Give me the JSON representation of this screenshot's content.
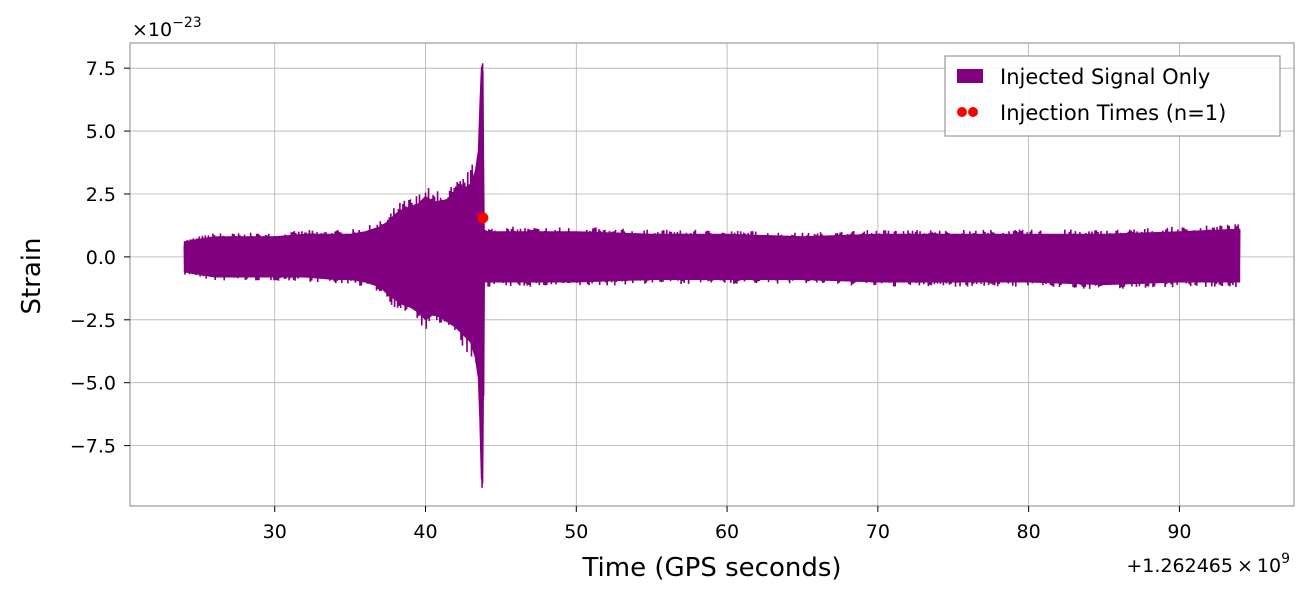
{
  "chart_data": {
    "type": "line",
    "title": "",
    "xlabel": "Time (GPS seconds)",
    "ylabel": "Strain",
    "xlim": [
      20.4,
      97.6
    ],
    "ylim": [
      -9.9,
      8.5
    ],
    "x_offset_label": {
      "base": "+1.262465",
      "times": "×",
      "mantissa": "10",
      "exponent": "9"
    },
    "y_scale_label": {
      "mantissa": "×10",
      "exponent": "−23"
    },
    "xticks": [
      30,
      40,
      50,
      60,
      70,
      80,
      90
    ],
    "xtick_labels": [
      "30",
      "40",
      "50",
      "60",
      "70",
      "80",
      "90"
    ],
    "yticks": [
      -7.5,
      -5.0,
      -2.5,
      0.0,
      2.5,
      5.0,
      7.5
    ],
    "ytick_labels": [
      "−7.5",
      "−5.0",
      "−2.5",
      "0.0",
      "2.5",
      "5.0",
      "7.5"
    ],
    "grid": true,
    "legend_position": "top-right",
    "series": [
      {
        "name": "Injected Signal Only",
        "color": "#800080",
        "kind": "filled-strain-envelope",
        "x": [
          24.0,
          26.0,
          28.0,
          30.0,
          32.0,
          34.0,
          35.0,
          36.0,
          37.0,
          37.5,
          38.0,
          38.5,
          39.0,
          39.5,
          40.0,
          40.5,
          41.0,
          41.5,
          42.0,
          42.5,
          43.0,
          43.3,
          43.5,
          43.6,
          43.7,
          43.8,
          43.9,
          44.0,
          46.0,
          50.0,
          55.0,
          60.0,
          65.0,
          70.0,
          75.0,
          80.0,
          85.0,
          90.0,
          94.0
        ],
        "upper": [
          0.6,
          0.8,
          0.8,
          0.8,
          0.9,
          0.9,
          0.9,
          1.0,
          1.2,
          1.4,
          1.7,
          1.9,
          2.0,
          2.1,
          2.4,
          2.2,
          2.2,
          2.3,
          2.5,
          2.7,
          2.9,
          3.4,
          4.2,
          6.0,
          7.5,
          7.7,
          1.0,
          1.0,
          1.0,
          1.0,
          0.9,
          0.9,
          0.8,
          0.9,
          0.9,
          0.9,
          0.9,
          1.0,
          1.1
        ],
        "lower": [
          -0.6,
          -0.8,
          -0.8,
          -0.8,
          -0.8,
          -0.9,
          -0.9,
          -1.0,
          -1.2,
          -1.5,
          -1.7,
          -1.9,
          -2.0,
          -2.2,
          -2.5,
          -2.3,
          -2.4,
          -2.6,
          -2.8,
          -3.1,
          -3.4,
          -4.0,
          -4.8,
          -6.5,
          -8.8,
          -9.0,
          -1.0,
          -1.0,
          -1.0,
          -1.0,
          -0.9,
          -0.9,
          -0.9,
          -1.0,
          -1.0,
          -1.0,
          -1.1,
          -1.0,
          -1.0
        ]
      },
      {
        "name": "Injection Times (n=1)",
        "color": "#ff0000",
        "kind": "scatter",
        "x": [
          43.8
        ],
        "y": [
          1.55
        ]
      }
    ]
  }
}
